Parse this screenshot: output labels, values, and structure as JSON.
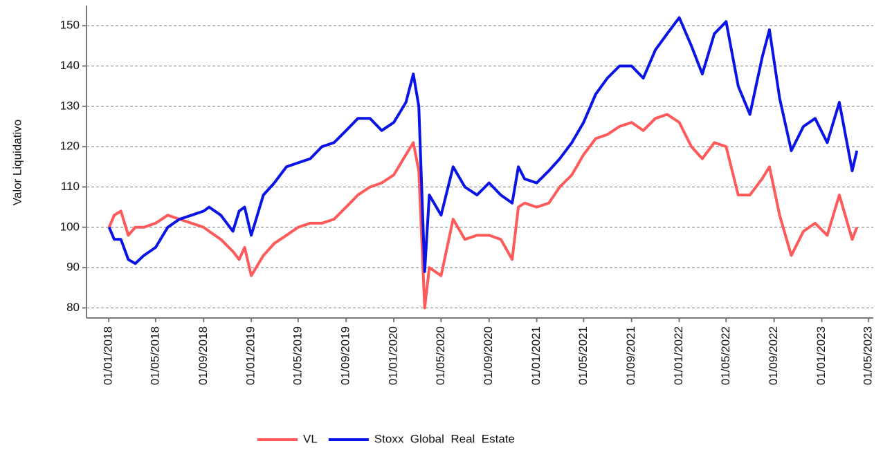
{
  "chart_data": {
    "type": "line",
    "y_label": "Valor Liquidativo",
    "x": [
      "2018-01-02",
      "2018-01-15",
      "2018-02-01",
      "2018-02-20",
      "2018-03-10",
      "2018-04-01",
      "2018-05-01",
      "2018-06-01",
      "2018-07-01",
      "2018-08-01",
      "2018-09-01",
      "2018-09-15",
      "2018-10-15",
      "2018-11-15",
      "2018-12-01",
      "2018-12-15",
      "2019-01-01",
      "2019-02-01",
      "2019-03-01",
      "2019-04-01",
      "2019-05-01",
      "2019-06-01",
      "2019-07-01",
      "2019-08-01",
      "2019-09-01",
      "2019-10-01",
      "2019-11-01",
      "2019-12-01",
      "2020-01-01",
      "2020-02-01",
      "2020-02-20",
      "2020-03-05",
      "2020-03-20",
      "2020-04-01",
      "2020-05-01",
      "2020-06-01",
      "2020-07-01",
      "2020-08-01",
      "2020-09-01",
      "2020-10-01",
      "2020-10-30",
      "2020-11-15",
      "2020-12-01",
      "2021-01-01",
      "2021-02-01",
      "2021-03-01",
      "2021-04-01",
      "2021-05-01",
      "2021-06-01",
      "2021-07-01",
      "2021-08-01",
      "2021-09-01",
      "2021-10-01",
      "2021-11-01",
      "2021-12-01",
      "2022-01-01",
      "2022-02-01",
      "2022-03-01",
      "2022-04-01",
      "2022-05-01",
      "2022-06-01",
      "2022-07-01",
      "2022-08-01",
      "2022-08-20",
      "2022-09-15",
      "2022-10-15",
      "2022-11-15",
      "2022-12-15",
      "2023-01-15",
      "2023-02-15",
      "2023-03-20",
      "2023-04-01"
    ],
    "series": [
      {
        "name": "VL",
        "color": "#ff5a5a",
        "values": [
          100,
          103,
          104,
          98,
          100,
          100,
          101,
          103,
          102,
          101,
          100,
          99,
          97,
          94,
          92,
          95,
          88,
          93,
          96,
          98,
          100,
          101,
          101,
          102,
          105,
          108,
          110,
          111,
          113,
          118,
          121,
          114,
          80,
          90,
          88,
          102,
          97,
          98,
          98,
          97,
          92,
          105,
          106,
          105,
          106,
          110,
          113,
          118,
          122,
          123,
          125,
          126,
          124,
          127,
          128,
          126,
          120,
          117,
          121,
          120,
          108,
          108,
          112,
          115,
          103,
          93,
          99,
          101,
          98,
          108,
          97,
          100
        ]
      },
      {
        "name": "Stoxx  Global  Real  Estate",
        "color": "#0a14e6",
        "values": [
          100,
          97,
          97,
          92,
          91,
          93,
          95,
          100,
          102,
          103,
          104,
          105,
          103,
          99,
          104,
          105,
          98,
          108,
          111,
          115,
          116,
          117,
          120,
          121,
          124,
          127,
          127,
          124,
          126,
          131,
          138,
          130,
          89,
          108,
          103,
          115,
          110,
          108,
          111,
          108,
          106,
          115,
          112,
          111,
          114,
          117,
          121,
          126,
          133,
          137,
          140,
          140,
          137,
          144,
          148,
          152,
          145,
          138,
          148,
          151,
          135,
          128,
          142,
          149,
          132,
          119,
          125,
          127,
          121,
          131,
          114,
          119
        ]
      }
    ],
    "xlim": [
      "2017-11-05",
      "2023-05-13"
    ],
    "xticks": [
      {
        "value": "2018-01-01",
        "label": "01/01/2018"
      },
      {
        "value": "2018-05-01",
        "label": "01/05/2018"
      },
      {
        "value": "2018-09-01",
        "label": "01/09/2018"
      },
      {
        "value": "2019-01-01",
        "label": "01/01/2019"
      },
      {
        "value": "2019-05-01",
        "label": "01/05/2019"
      },
      {
        "value": "2019-09-01",
        "label": "01/09/2019"
      },
      {
        "value": "2020-01-01",
        "label": "01/01/2020"
      },
      {
        "value": "2020-05-01",
        "label": "01/05/2020"
      },
      {
        "value": "2020-09-01",
        "label": "01/09/2020"
      },
      {
        "value": "2021-01-01",
        "label": "01/01/2021"
      },
      {
        "value": "2021-05-01",
        "label": "01/05/2021"
      },
      {
        "value": "2021-09-01",
        "label": "01/09/2021"
      },
      {
        "value": "2022-01-01",
        "label": "01/01/2022"
      },
      {
        "value": "2022-05-01",
        "label": "01/05/2022"
      },
      {
        "value": "2022-09-01",
        "label": "01/09/2022"
      },
      {
        "value": "2023-01-01",
        "label": "01/01/2023"
      },
      {
        "value": "2023-05-01",
        "label": "01/05/2023"
      }
    ],
    "ylim": [
      77.5,
      155
    ],
    "yticks": [
      80,
      90,
      100,
      110,
      120,
      130,
      140,
      150
    ],
    "grid": true,
    "legend": "bottom"
  }
}
